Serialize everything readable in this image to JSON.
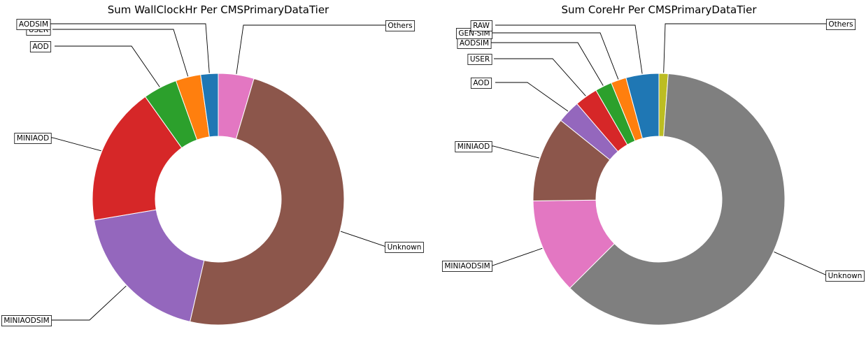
{
  "chart_data": [
    {
      "type": "pie",
      "donut": true,
      "title": "Sum WallClockHr Per CMSPrimaryDataTier",
      "slices": [
        {
          "label": "Others",
          "value": 4.7,
          "color": "#e377c2"
        },
        {
          "label": "Unknown",
          "value": 50.3,
          "color": "#8c564b"
        },
        {
          "label": "MINIAODSIM",
          "value": 19.2,
          "color": "#9467bd"
        },
        {
          "label": "MINIAOD",
          "value": 18.3,
          "color": "#d62728"
        },
        {
          "label": "AOD",
          "value": 4.5,
          "color": "#2ca02c"
        },
        {
          "label": "USER",
          "value": 3.3,
          "color": "#ff7f0e"
        },
        {
          "label": "AODSIM",
          "value": 2.3,
          "color": "#1f77b4"
        }
      ]
    },
    {
      "type": "pie",
      "donut": true,
      "title": "Sum CoreHr Per CMSPrimaryDataTier",
      "slices": [
        {
          "label": "Others",
          "value": 1.2,
          "color": "#bcbd22"
        },
        {
          "label": "Unknown",
          "value": 62.5,
          "color": "#7f7f7f"
        },
        {
          "label": "MINIAODSIM",
          "value": 12.5,
          "color": "#e377c2"
        },
        {
          "label": "MINIAOD",
          "value": 11.2,
          "color": "#8c564b"
        },
        {
          "label": "AOD",
          "value": 3.0,
          "color": "#9467bd"
        },
        {
          "label": "USER",
          "value": 3.0,
          "color": "#d62728"
        },
        {
          "label": "AODSIM",
          "value": 2.2,
          "color": "#2ca02c"
        },
        {
          "label": "GEN-SIM",
          "value": 2.0,
          "color": "#ff7f0e"
        },
        {
          "label": "RAW",
          "value": 4.3,
          "color": "#1f77b4"
        }
      ]
    }
  ]
}
